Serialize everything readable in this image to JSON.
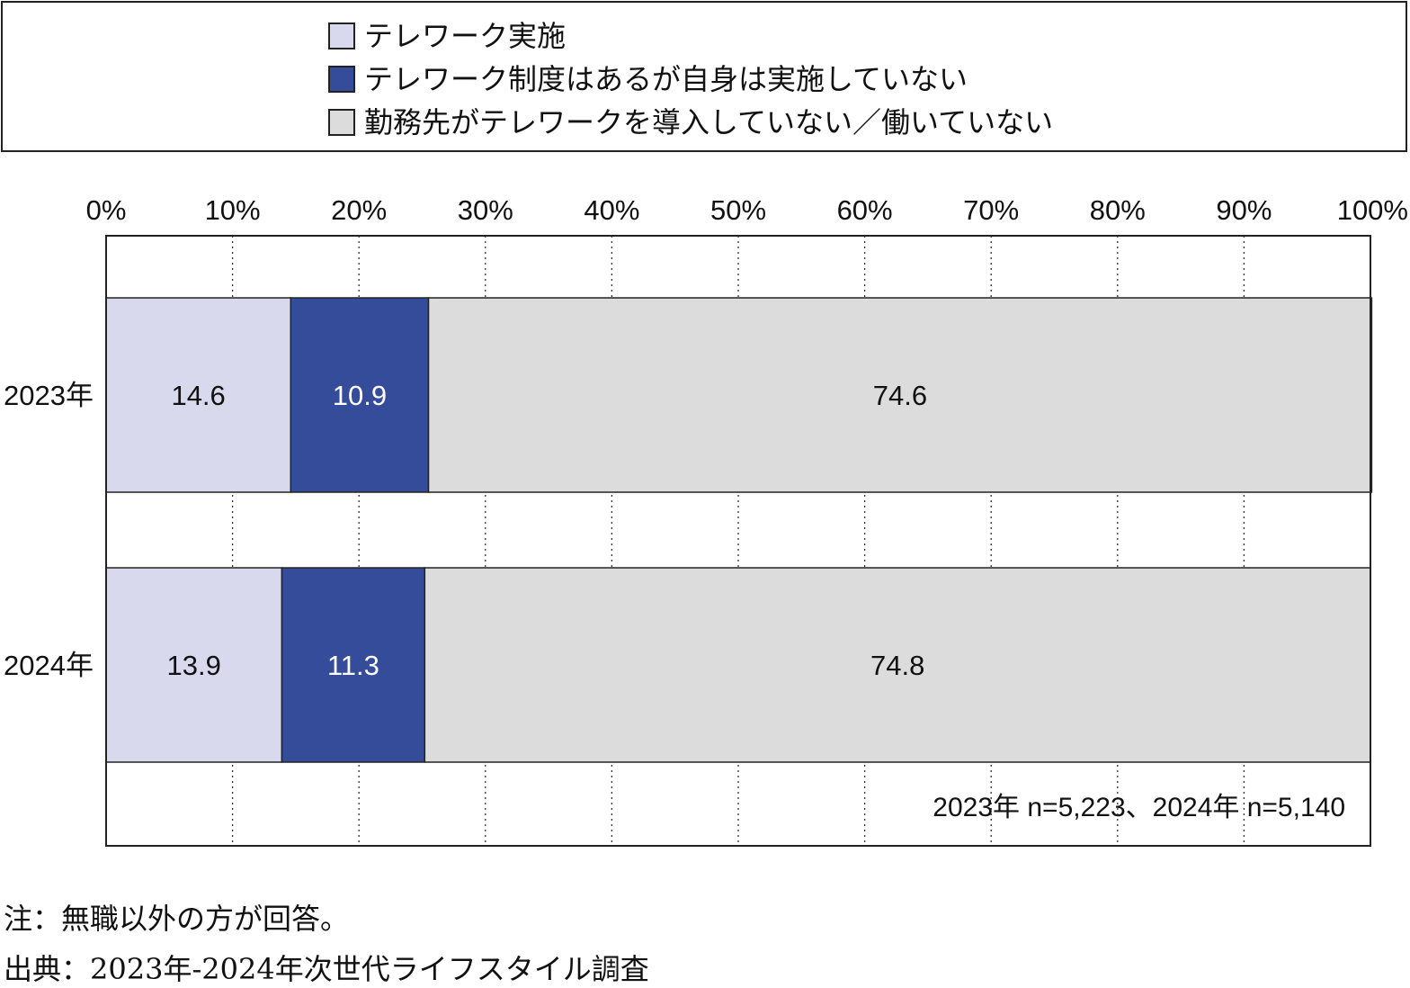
{
  "legend": {
    "items": [
      {
        "label": "テレワーク実施",
        "color": "#d8d9ec"
      },
      {
        "label": "テレワーク制度はあるが自身は実施していない",
        "color": "#344c9a"
      },
      {
        "label": "勤務先がテレワークを導入していない／働いていない",
        "color": "#dcdcdc"
      }
    ]
  },
  "chart_data": {
    "type": "bar",
    "orientation": "horizontal",
    "stacked": true,
    "title": "",
    "xlabel": "",
    "ylabel": "",
    "xlim": [
      0,
      100
    ],
    "x_ticks": [
      "0%",
      "10%",
      "20%",
      "30%",
      "40%",
      "50%",
      "60%",
      "70%",
      "80%",
      "90%",
      "100%"
    ],
    "categories": [
      "2023年",
      "2024年"
    ],
    "series": [
      {
        "name": "テレワーク実施",
        "values": [
          14.6,
          13.9
        ],
        "labels": [
          "14.6",
          "13.9"
        ],
        "color": "#d8d9ec",
        "label_color": "#111111"
      },
      {
        "name": "テレワーク制度はあるが自身は実施していない",
        "values": [
          10.9,
          11.3
        ],
        "labels": [
          "10.9",
          "11.3"
        ],
        "color": "#344c9a",
        "label_color": "#ffffff"
      },
      {
        "name": "勤務先がテレワークを導入していない／働いていない",
        "values": [
          74.6,
          74.8
        ],
        "labels": [
          "74.6",
          "74.8"
        ],
        "color": "#dcdcdc",
        "label_color": "#111111"
      }
    ],
    "grid": "vertical dotted",
    "legend_position": "top"
  },
  "sample_note": "2023年 n=5,223、2024年 n=5,140",
  "footnotes": {
    "note": "注：無職以外の方が回答。",
    "source": "出典：2023年-2024年次世代ライフスタイル調査"
  }
}
